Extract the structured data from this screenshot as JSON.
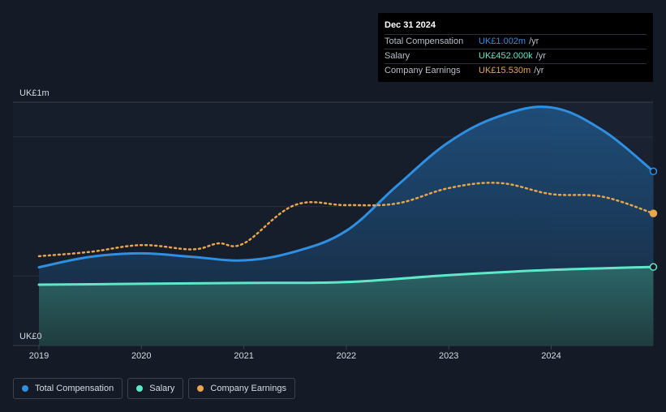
{
  "chart_data": {
    "type": "area",
    "x_ticks": [
      "2019",
      "2020",
      "2021",
      "2022",
      "2023",
      "2024"
    ],
    "y_tick_labels": [
      "UK£1m",
      "UK£0"
    ],
    "ylim": [
      0,
      1.4
    ],
    "y_unit": "UK£m",
    "grid": true,
    "legend_position": "bottom-left",
    "series": [
      {
        "name": "Total Compensation",
        "color": "#2f8fe0",
        "type": "area",
        "x": [
          "2019-01-01",
          "2019-07-01",
          "2020-01-01",
          "2020-07-01",
          "2021-01-01",
          "2021-07-01",
          "2022-01-01",
          "2022-07-01",
          "2023-01-01",
          "2023-07-01",
          "2024-01-01",
          "2024-07-01",
          "2024-12-31"
        ],
        "values": [
          0.45,
          0.51,
          0.53,
          0.51,
          0.49,
          0.54,
          0.66,
          0.92,
          1.17,
          1.32,
          1.37,
          1.24,
          1.002
        ]
      },
      {
        "name": "Salary",
        "color": "#5ee8c8",
        "type": "area",
        "x": [
          "2019-01-01",
          "2020-01-01",
          "2021-01-01",
          "2022-01-01",
          "2023-01-01",
          "2024-01-01",
          "2024-12-31"
        ],
        "values": [
          0.35,
          0.355,
          0.36,
          0.365,
          0.405,
          0.435,
          0.452
        ]
      },
      {
        "name": "Company Earnings",
        "color": "#e8a64a",
        "type": "line",
        "style": "dotted",
        "x": [
          "2019-01-01",
          "2019-07-01",
          "2020-01-01",
          "2020-07-01",
          "2020-10-01",
          "2021-01-01",
          "2021-07-01",
          "2022-01-01",
          "2022-07-01",
          "2023-01-01",
          "2023-07-01",
          "2024-01-01",
          "2024-07-01",
          "2024-12-31"
        ],
        "values": [
          10.5,
          11.0,
          11.8,
          11.3,
          12.0,
          12.0,
          16.5,
          16.5,
          16.7,
          18.5,
          19.1,
          17.8,
          17.5,
          15.53
        ],
        "ylim": [
          0,
          28.6
        ]
      }
    ]
  },
  "tooltip": {
    "date": "Dec 31 2024",
    "rows": [
      {
        "name": "Total Compensation",
        "value": "UK£1.002m",
        "unit": "/yr",
        "color": "#2f8fe0"
      },
      {
        "name": "Salary",
        "value": "UK£452.000k",
        "unit": "/yr",
        "color": "#5ee8c8"
      },
      {
        "name": "Company Earnings",
        "value": "UK£15.530m",
        "unit": "/yr",
        "color": "#e8a64a"
      }
    ]
  },
  "legend": [
    {
      "label": "Total Compensation",
      "color": "#2f8fe0"
    },
    {
      "label": "Salary",
      "color": "#5ee8c8"
    },
    {
      "label": "Company Earnings",
      "color": "#e8a64a"
    }
  ]
}
